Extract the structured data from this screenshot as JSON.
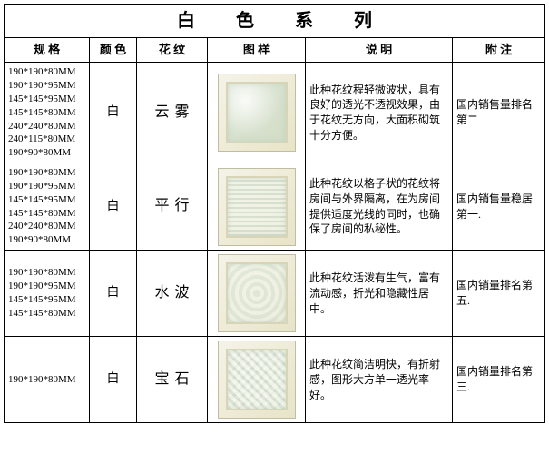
{
  "title": "白 色 系 列",
  "headers": {
    "spec": "规 格",
    "color": "颜 色",
    "pattern": "花 纹",
    "sample": "图 样",
    "desc": "说 明",
    "note": "附 注"
  },
  "rows": [
    {
      "specs": [
        "190*190*80MM",
        "190*190*95MM",
        "145*145*95MM",
        "145*145*80MM",
        "240*240*80MM",
        "240*115*80MM",
        "190*90*80MM"
      ],
      "color": "白",
      "pattern": "云雾",
      "sample_type": "cloud",
      "desc": "此种花纹程轻微波状，具有良好的透光不透视效果，由于花纹无方向，大面积砌筑十分方便。",
      "note": "国内销售量排名第二"
    },
    {
      "specs": [
        "190*190*80MM",
        "190*190*95MM",
        "145*145*95MM",
        "145*145*80MM",
        "240*240*80MM",
        "190*90*80MM"
      ],
      "color": "白",
      "pattern": "平行",
      "sample_type": "lines",
      "desc": "此种花纹以格子状的花纹将房间与外界隔离，在为房间提供适度光线的同时，也确保了房间的私秘性。",
      "note": "国内销售量稳居第一."
    },
    {
      "specs": [
        "190*190*80MM",
        "190*190*95MM",
        "145*145*95MM",
        "145*145*80MM"
      ],
      "color": "白",
      "pattern": "水波",
      "sample_type": "wave",
      "desc": "此种花纹活泼有生气，富有流动感，折光和隐藏性居中。",
      "note": "国内销量排名第五."
    },
    {
      "specs": [
        "190*190*80MM"
      ],
      "color": "白",
      "pattern": "宝石",
      "sample_type": "diamond",
      "desc": "此种花纹简洁明快，有折射感，图形大方单一透光率好。",
      "note": "国内销量排名第三."
    }
  ],
  "style": {
    "border_color": "#000000",
    "background": "#ffffff",
    "sample_bg_colors": [
      "#f5f3e8",
      "#e8e4c8"
    ],
    "title_fontsize": 20,
    "header_fontsize": 13,
    "body_fontsize": 12,
    "spec_fontsize": 11,
    "pattern_fontsize": 16
  }
}
